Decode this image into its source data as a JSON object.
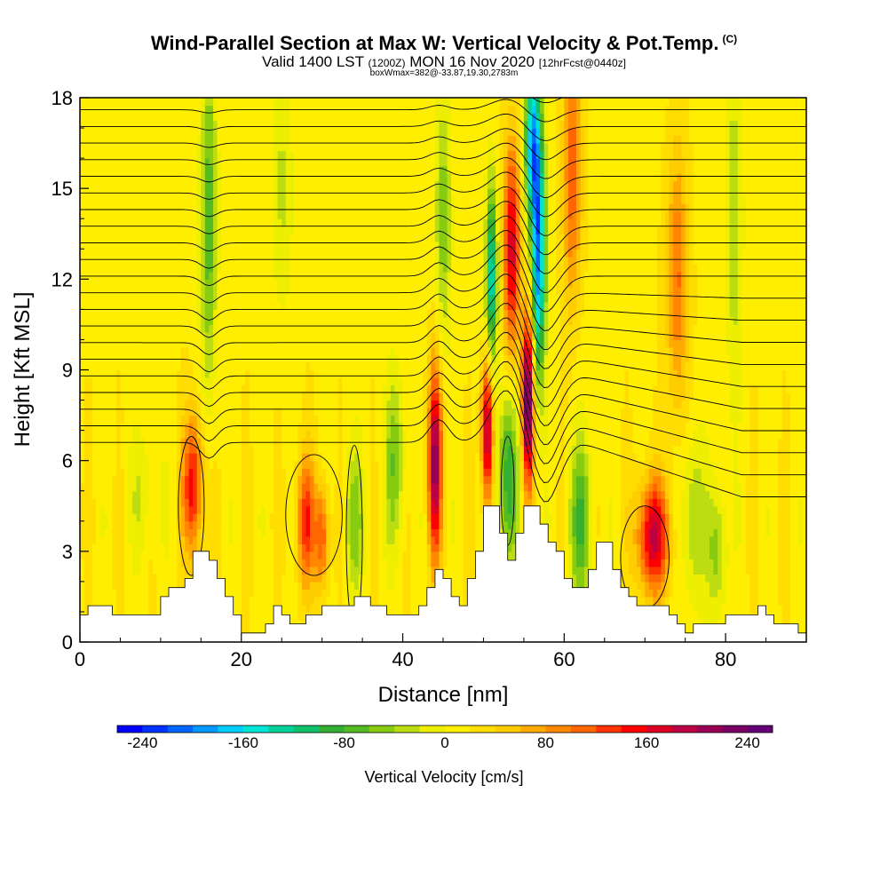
{
  "header": {
    "title": "Wind-Parallel Section at Max W: Vertical Velocity & Pot.Temp.",
    "copyright": "(C)",
    "subtitle_a": "Valid 1400 LST",
    "subtitle_utc": "(1200Z)",
    "subtitle_b": "MON 16 Nov 2020",
    "subtitle_fcst": "[12hrFcst@0440z]",
    "boxline": "boxWmax=382@-33.87,19.30,2783m"
  },
  "chart_data": {
    "type": "heatmap",
    "title": "Wind-Parallel Section at Max W: Vertical Velocity & Pot.Temp.",
    "xlabel": "Distance [nm]",
    "ylabel": "Height [Kft MSL]",
    "xlim": [
      0,
      90
    ],
    "ylim": [
      0,
      18
    ],
    "x_ticks": [
      0,
      20,
      40,
      60,
      80
    ],
    "y_ticks": [
      0,
      3,
      6,
      9,
      12,
      15,
      18
    ],
    "x_tick_labels": [
      "0",
      "20",
      "40",
      "60",
      "80"
    ],
    "y_tick_labels": [
      "0",
      "3",
      "6",
      "9",
      "12",
      "15",
      "18"
    ],
    "colorbar": {
      "label": "Vertical Velocity [cm/s]",
      "min": -260,
      "max": 260,
      "step": 20,
      "tick_values": [
        -240,
        -160,
        -80,
        0,
        80,
        160,
        240
      ],
      "tick_labels": [
        "-240",
        "-160",
        "-80",
        "0",
        "80",
        "160",
        "240"
      ],
      "colors": [
        "#0000ff",
        "#0033ff",
        "#0066ff",
        "#0099ff",
        "#00ccff",
        "#00e5d5",
        "#00d29a",
        "#11c06a",
        "#33b033",
        "#55bb22",
        "#88cc11",
        "#bbdd11",
        "#eeee00",
        "#ffee00",
        "#ffdd00",
        "#ffcc00",
        "#ffaa00",
        "#ff8800",
        "#ff6600",
        "#ff3300",
        "#ff0000",
        "#dd0022",
        "#bb0044",
        "#990055",
        "#7a0066",
        "#660077"
      ]
    },
    "terrain_x_nm": [
      0,
      1,
      2,
      4,
      6,
      8,
      10,
      11,
      12,
      13,
      14,
      15,
      16,
      17,
      18,
      19,
      20,
      21,
      22,
      23,
      24,
      25,
      26,
      28,
      30,
      32,
      34,
      36,
      38,
      40,
      42,
      43,
      44,
      45,
      46,
      47,
      48,
      49,
      50,
      51,
      52,
      53,
      54,
      55,
      56,
      57,
      58,
      59,
      60,
      61,
      62,
      63,
      64,
      65,
      66,
      67,
      68,
      69,
      70,
      71,
      72,
      73,
      74,
      75,
      76,
      77,
      78,
      80,
      82,
      84,
      85,
      86,
      88,
      89,
      90
    ],
    "terrain_kft": [
      0.9,
      1.2,
      1.2,
      0.9,
      0.9,
      0.9,
      1.5,
      1.8,
      1.8,
      2.1,
      3.0,
      3.0,
      2.7,
      2.1,
      1.5,
      0.9,
      0.3,
      0.3,
      0.3,
      0.6,
      1.2,
      0.9,
      0.6,
      0.9,
      1.2,
      1.2,
      1.5,
      1.2,
      0.9,
      0.9,
      1.2,
      1.8,
      2.4,
      2.1,
      1.5,
      1.2,
      2.1,
      3.0,
      4.5,
      4.5,
      3.6,
      2.7,
      3.6,
      4.5,
      4.5,
      3.9,
      3.3,
      3.0,
      2.1,
      1.8,
      1.8,
      2.4,
      3.3,
      3.3,
      2.4,
      1.8,
      1.5,
      1.2,
      1.2,
      1.2,
      1.2,
      0.9,
      0.6,
      0.3,
      0.6,
      0.6,
      0.6,
      0.9,
      0.9,
      1.2,
      0.9,
      0.6,
      0.6,
      0.3,
      0.3
    ],
    "w_features": [
      {
        "x_nm": 14,
        "z_kft": 5.2,
        "w_cms": 140,
        "sx": 0.9,
        "sz": 1.6
      },
      {
        "x_nm": 16,
        "z_kft": 14.0,
        "w_cms": -90,
        "sx": 0.7,
        "sz": 4.0
      },
      {
        "x_nm": 28,
        "z_kft": 4.0,
        "w_cms": 120,
        "sx": 0.8,
        "sz": 1.5
      },
      {
        "x_nm": 30,
        "z_kft": 3.5,
        "w_cms": 110,
        "sx": 0.6,
        "sz": 1.2
      },
      {
        "x_nm": 34,
        "z_kft": 4.0,
        "w_cms": -60,
        "sx": 0.9,
        "sz": 1.8
      },
      {
        "x_nm": 39,
        "z_kft": 6.0,
        "w_cms": -70,
        "sx": 0.9,
        "sz": 2.0
      },
      {
        "x_nm": 44,
        "z_kft": 6.0,
        "w_cms": 200,
        "sx": 0.6,
        "sz": 2.2
      },
      {
        "x_nm": 45,
        "z_kft": 14.0,
        "w_cms": -70,
        "sx": 0.7,
        "sz": 3.0
      },
      {
        "x_nm": 50.5,
        "z_kft": 7.0,
        "w_cms": 200,
        "sx": 0.5,
        "sz": 1.7
      },
      {
        "x_nm": 51.0,
        "z_kft": 12.0,
        "w_cms": -160,
        "sx": 0.5,
        "sz": 2.2
      },
      {
        "x_nm": 53,
        "z_kft": 5.5,
        "w_cms": -110,
        "sx": 0.9,
        "sz": 2.0
      },
      {
        "x_nm": 53.5,
        "z_kft": 13.0,
        "w_cms": 160,
        "sx": 0.7,
        "sz": 2.5
      },
      {
        "x_nm": 55.5,
        "z_kft": 8.0,
        "w_cms": 240,
        "sx": 0.5,
        "sz": 2.0
      },
      {
        "x_nm": 56.8,
        "z_kft": 13.0,
        "w_cms": -220,
        "sx": 0.6,
        "sz": 3.0
      },
      {
        "x_nm": 56.0,
        "z_kft": 16.5,
        "w_cms": -180,
        "sx": 0.6,
        "sz": 1.8
      },
      {
        "x_nm": 62,
        "z_kft": 4.0,
        "w_cms": -90,
        "sx": 1.0,
        "sz": 2.0
      },
      {
        "x_nm": 61,
        "z_kft": 15.5,
        "w_cms": 100,
        "sx": 0.8,
        "sz": 3.0
      },
      {
        "x_nm": 71,
        "z_kft": 3.5,
        "w_cms": 170,
        "sx": 1.4,
        "sz": 1.3
      },
      {
        "x_nm": 76,
        "z_kft": 4.0,
        "w_cms": -60,
        "sx": 1.0,
        "sz": 2.0
      },
      {
        "x_nm": 79,
        "z_kft": 3.0,
        "w_cms": -70,
        "sx": 0.8,
        "sz": 1.5
      },
      {
        "x_nm": 81,
        "z_kft": 14.0,
        "w_cms": -50,
        "sx": 0.8,
        "sz": 4.0
      },
      {
        "x_nm": 74,
        "z_kft": 12.0,
        "w_cms": 90,
        "sx": 0.9,
        "sz": 3.0
      },
      {
        "x_nm": 25,
        "z_kft": 15.0,
        "w_cms": -40,
        "sx": 0.9,
        "sz": 3.0
      },
      {
        "x_nm": 8,
        "z_kft": 5.0,
        "w_cms": -30,
        "sx": 1.5,
        "sz": 1.5
      }
    ],
    "theta_contours": {
      "first_level_kft": 6.6,
      "count": 22,
      "spacing_kft": 0.55
    }
  }
}
